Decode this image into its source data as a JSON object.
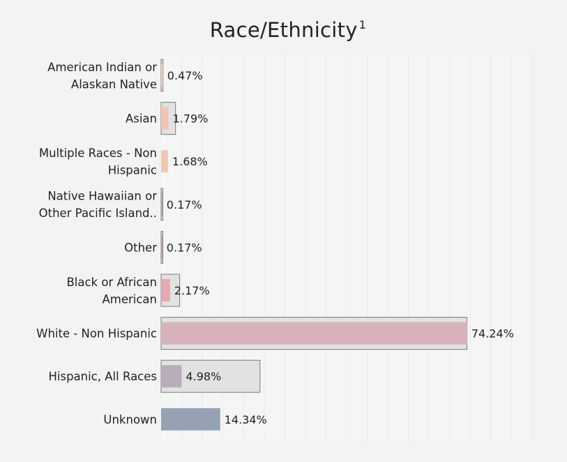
{
  "chart_data": {
    "type": "bar",
    "orientation": "horizontal",
    "title": "Race/Ethnicity",
    "title_superscript": "1",
    "categories": [
      [
        "American Indian or",
        "Alaskan Native"
      ],
      [
        "Asian"
      ],
      [
        "Multiple Races - Non",
        "Hispanic"
      ],
      [
        "Native Hawaiian or",
        "Other Pacific Island.."
      ],
      [
        "Other"
      ],
      [
        "Black or African",
        "American"
      ],
      [
        "White - Non Hispanic"
      ],
      [
        "Hispanic, All Races"
      ],
      [
        "Unknown"
      ]
    ],
    "values": [
      0.47,
      1.79,
      1.68,
      0.17,
      0.17,
      2.17,
      74.24,
      4.98,
      14.34
    ],
    "value_labels": [
      "0.47%",
      "1.79%",
      "1.68%",
      "0.17%",
      "0.17%",
      "2.17%",
      "74.24%",
      "4.98%",
      "14.34%"
    ],
    "reference_values": [
      0.47,
      3.5,
      null,
      0.3,
      0.3,
      4.5,
      74.2,
      24.0,
      null
    ],
    "bar_colors": [
      "#f0c8b8",
      "#f0c4b4",
      "#f0c8b4",
      "#b8a4a4",
      "#b8a0a0",
      "#e2aab2",
      "#d8b2ba",
      "#b8aeba",
      "#96a2b4"
    ],
    "reference_fill": "#e2e2e2",
    "reference_stroke": "#7a7a7a",
    "xlim": [
      0,
      90
    ],
    "grid": true,
    "xlabel": "",
    "ylabel": ""
  }
}
